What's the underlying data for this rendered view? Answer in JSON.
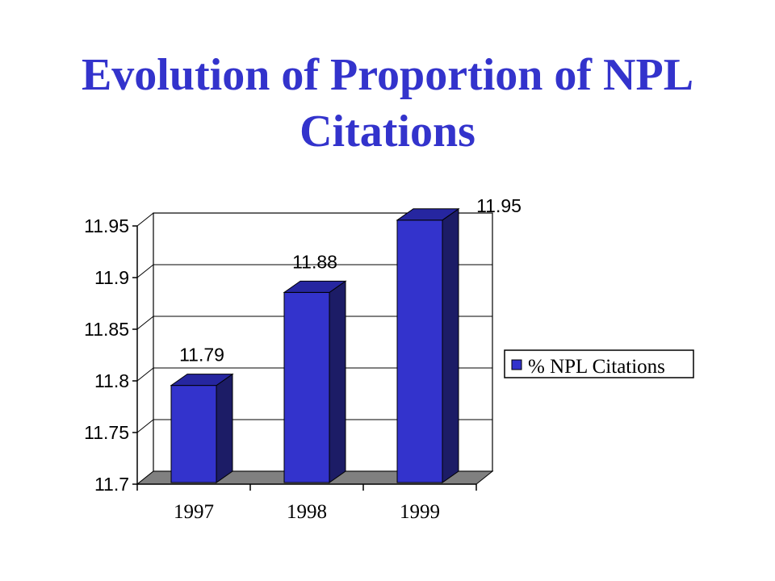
{
  "title_lines": [
    "Evolution of Proportion of NPL",
    "Citations"
  ],
  "colors": {
    "title": "#3333cc",
    "bar_front": "#3333cc",
    "bar_side": "#1c1c66",
    "bar_top": "#2626a0",
    "floor": "#808080"
  },
  "chart_data": {
    "type": "bar",
    "categories": [
      "1997",
      "1998",
      "1999"
    ],
    "series": [
      {
        "name": "% NPL Citations",
        "values": [
          11.79,
          11.88,
          11.95
        ]
      }
    ],
    "data_labels": [
      "11.79",
      "11.88",
      "11.95"
    ],
    "y_ticks": [
      "11.7",
      "11.75",
      "11.8",
      "11.85",
      "11.9",
      "11.95"
    ],
    "ylim": [
      11.7,
      11.95
    ],
    "grid": true,
    "legend": "right",
    "style": "3d-column"
  }
}
